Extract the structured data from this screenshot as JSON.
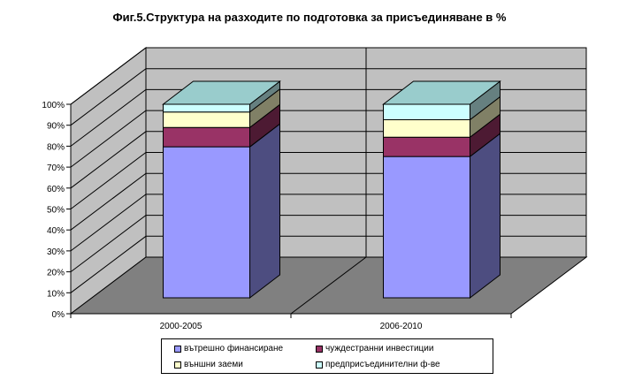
{
  "chart_data": {
    "type": "bar",
    "stacked": true,
    "percent": true,
    "three_d": true,
    "title": "Фиг.5.Структура на разходите по подготовка за присъединяване в %",
    "categories": [
      "2000-2005",
      "2006-2010"
    ],
    "series": [
      {
        "name": "вътрешно финансиране",
        "color": "#9999ff",
        "values": [
          78,
          73
        ]
      },
      {
        "name": "чуждестранни инвестиции",
        "color": "#993366",
        "values": [
          10,
          10
        ]
      },
      {
        "name": "външни заеми",
        "color": "#ffffcc",
        "values": [
          8,
          9
        ]
      },
      {
        "name": "предприсъединителни ф-ве",
        "color": "#ccffff",
        "values": [
          4,
          8
        ]
      }
    ],
    "top_color": "#99cccc",
    "y_ticks": [
      "0%",
      "10%",
      "20%",
      "30%",
      "40%",
      "50%",
      "60%",
      "70%",
      "80%",
      "90%",
      "100%"
    ],
    "ylim": [
      0,
      100
    ],
    "grid": true,
    "legend_position": "bottom"
  }
}
